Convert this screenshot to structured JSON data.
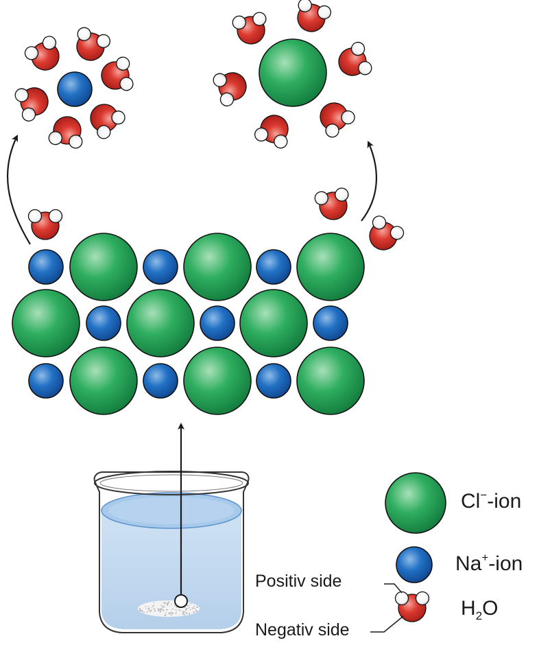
{
  "colors": {
    "chloride": "#1f9a52",
    "sodium": "#1e63b4",
    "oxygen": "#d9362c",
    "hydrogen": "#ffffff",
    "water_in_beaker": "#c9ddf1",
    "arrow": "#1a1a1a"
  },
  "legend": {
    "chloride": {
      "symbol": "Cl",
      "charge": "−",
      "suffix": "-ion",
      "icon": "green-sphere-icon"
    },
    "sodium": {
      "symbol": "Na",
      "charge": "+",
      "suffix": "-ion",
      "icon": "blue-sphere-icon"
    },
    "water": {
      "symbol": "H",
      "subscript": "2",
      "suffix": "O",
      "icon": "water-molecule-icon"
    }
  },
  "annotations": {
    "positive_side": "Positiv side",
    "negative_side": "Negativ side"
  }
}
